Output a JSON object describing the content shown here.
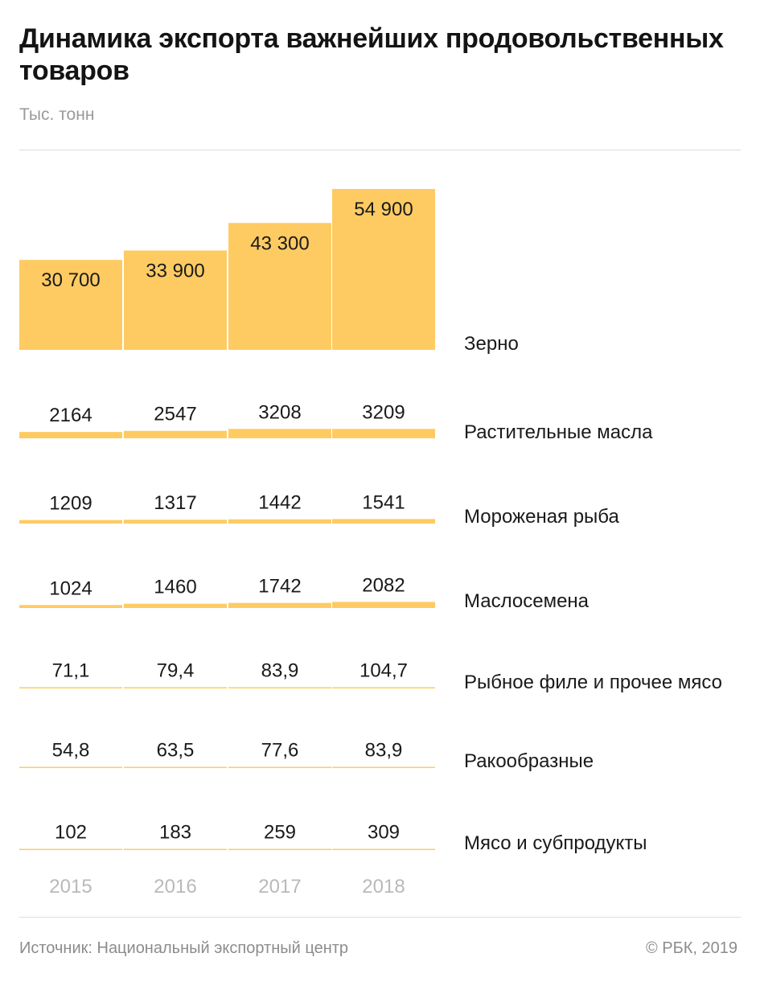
{
  "header": {
    "title": "Динамика экспорта важнейших продовольственных товаров",
    "subtitle": "Тыс. тонн"
  },
  "footer": {
    "source": "Источник: Национальный экспортный центр",
    "copyright": "© РБК, 2019"
  },
  "colors": {
    "bar": "#fecb63",
    "text": "#1a1a1a",
    "muted": "#9a9a9a"
  },
  "chart_data": {
    "type": "bar",
    "categories": [
      "2015",
      "2016",
      "2017",
      "2018"
    ],
    "series": [
      {
        "name": "Зерно",
        "values": [
          30700,
          33900,
          43300,
          54900
        ],
        "labels": [
          "30 700",
          "33 900",
          "43 300",
          "54 900"
        ]
      },
      {
        "name": "Растительные масла",
        "values": [
          2164,
          2547,
          3208,
          3209
        ],
        "labels": [
          "2164",
          "2547",
          "3208",
          "3209"
        ]
      },
      {
        "name": "Мороженая рыба",
        "values": [
          1209,
          1317,
          1442,
          1541
        ],
        "labels": [
          "1209",
          "1317",
          "1442",
          "1541"
        ]
      },
      {
        "name": "Маслосемена",
        "values": [
          1024,
          1460,
          1742,
          2082
        ],
        "labels": [
          "1024",
          "1460",
          "1742",
          "2082"
        ]
      },
      {
        "name": "Рыбное филе и прочее мясо",
        "values": [
          71.1,
          79.4,
          83.9,
          104.7
        ],
        "labels": [
          "71,1",
          "79,4",
          "83,9",
          "104,7"
        ]
      },
      {
        "name": "Ракообразные",
        "values": [
          54.8,
          63.5,
          77.6,
          83.9
        ],
        "labels": [
          "54,8",
          "63,5",
          "77,6",
          "83,9"
        ]
      },
      {
        "name": "Мясо и субпродукты",
        "values": [
          102,
          183,
          259,
          309
        ],
        "labels": [
          "102",
          "183",
          "259",
          "309"
        ]
      }
    ],
    "unit": "Тыс. тонн"
  }
}
